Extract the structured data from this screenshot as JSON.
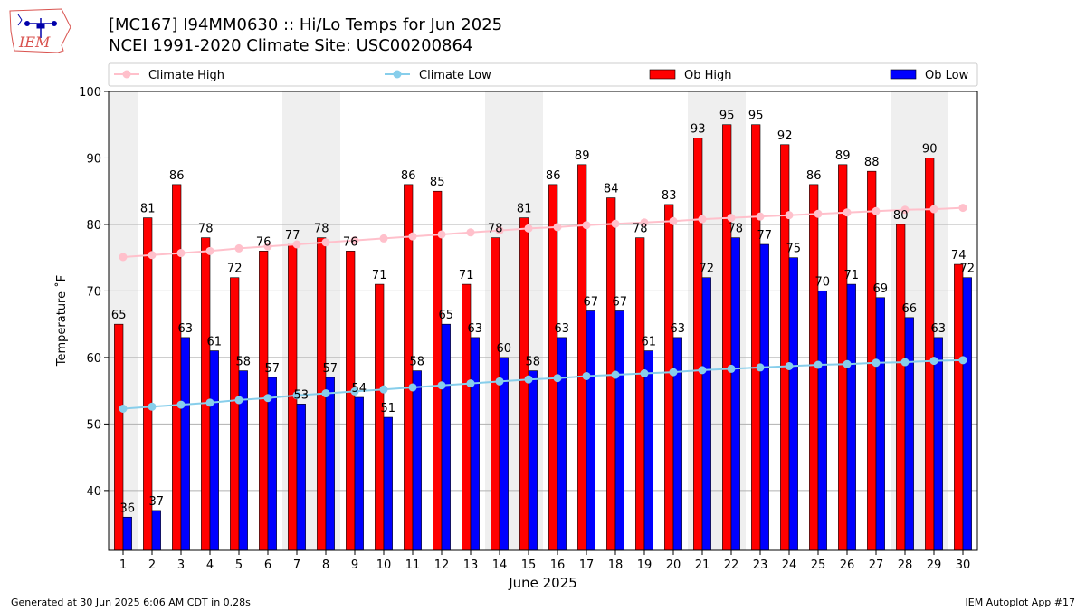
{
  "logo": {
    "text": "IEM"
  },
  "header": {
    "title_line1": "[MC167] I94MM0630  :: Hi/Lo Temps for Jun 2025",
    "title_line2": "NCEI 1991-2020 Climate Site: USC00200864"
  },
  "footer": {
    "generated": "Generated at 30 Jun 2025 6:06 AM CDT in 0.28s",
    "app": "IEM Autoplot App #17"
  },
  "chart_data": {
    "type": "bar",
    "xlabel": "June 2025",
    "ylabel": "Temperature ˚F",
    "ylim": [
      31,
      100
    ],
    "yticks": [
      40,
      50,
      60,
      70,
      80,
      90,
      100
    ],
    "grid": "horizontal",
    "legend_placement": "top",
    "categories": [
      "1",
      "2",
      "3",
      "4",
      "5",
      "6",
      "7",
      "8",
      "9",
      "10",
      "11",
      "12",
      "13",
      "14",
      "15",
      "16",
      "17",
      "18",
      "19",
      "20",
      "21",
      "22",
      "23",
      "24",
      "25",
      "26",
      "27",
      "28",
      "29",
      "30"
    ],
    "weekend_shading_days": [
      1,
      7,
      8,
      14,
      15,
      21,
      22,
      28,
      29
    ],
    "series": [
      {
        "name": "Climate High",
        "kind": "line",
        "color": "#ffc0cb",
        "values": [
          75.1,
          75.4,
          75.7,
          76.0,
          76.4,
          76.7,
          77.0,
          77.3,
          77.6,
          77.9,
          78.2,
          78.5,
          78.8,
          79.1,
          79.4,
          79.6,
          79.9,
          80.1,
          80.3,
          80.5,
          80.8,
          81.0,
          81.2,
          81.4,
          81.6,
          81.8,
          82.0,
          82.2,
          82.3,
          82.5
        ]
      },
      {
        "name": "Climate Low",
        "kind": "line",
        "color": "#87ceeb",
        "values": [
          52.3,
          52.6,
          52.9,
          53.2,
          53.6,
          53.9,
          54.3,
          54.6,
          54.9,
          55.2,
          55.5,
          55.8,
          56.1,
          56.4,
          56.7,
          56.9,
          57.2,
          57.4,
          57.6,
          57.8,
          58.1,
          58.3,
          58.5,
          58.7,
          58.9,
          59.0,
          59.2,
          59.3,
          59.5,
          59.6
        ]
      },
      {
        "name": "Ob High",
        "kind": "bar",
        "color": "#ff0000",
        "values": [
          65,
          81,
          86,
          78,
          72,
          76,
          77,
          78,
          76,
          71,
          86,
          85,
          71,
          78,
          81,
          86,
          89,
          84,
          78,
          83,
          93,
          95,
          95,
          92,
          86,
          89,
          88,
          80,
          90,
          74
        ]
      },
      {
        "name": "Ob Low",
        "kind": "bar",
        "color": "#0000ff",
        "values": [
          36,
          37,
          63,
          61,
          58,
          57,
          53,
          57,
          54,
          51,
          58,
          65,
          63,
          60,
          58,
          63,
          67,
          67,
          61,
          63,
          72,
          78,
          77,
          75,
          70,
          71,
          69,
          66,
          63,
          72
        ]
      }
    ]
  }
}
